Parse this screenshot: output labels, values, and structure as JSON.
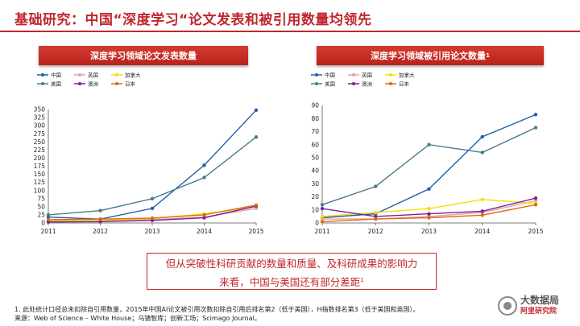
{
  "title": "基础研究：中国“深度学习“论文发表和被引用数量均领先",
  "callout": {
    "line1": "但从突破性科研贡献的数量和质量、及科研成果的影响力",
    "line2": "来看，中国与美国还有部分差距",
    "sup": "1"
  },
  "footnote": {
    "line1": "1. 此处统计口径总未扣除自引用数量，2015年中国AI论文被引用次数扣除自引用后排名第2（低于美国），H指数排名第3（低于美国和英国）。",
    "line2": "来源：Web of Science – White House；乌镇智库；创新工场；Scimago Journal。"
  },
  "watermark": {
    "main": "大数据局",
    "sub": "阿里研究院"
  },
  "colors": {
    "中国": "#1f5fa8",
    "英国": "#e8a0a0",
    "加拿大": "#f2e000",
    "美国": "#4a7b8c",
    "澳洲": "#7a1fa2",
    "日本": "#d86e10"
  },
  "chart_data": [
    {
      "type": "line",
      "title": "深度学习领域论文发表数量",
      "title_sup": "",
      "x": [
        2011,
        2012,
        2013,
        2014,
        2015
      ],
      "ylim": [
        0,
        350
      ],
      "yticks": [
        0,
        25,
        50,
        75,
        100,
        125,
        150,
        175,
        200,
        225,
        250,
        275,
        300,
        325,
        350
      ],
      "legend_placement": "top-left",
      "series": [
        {
          "name": "中国",
          "values": [
            18,
            12,
            45,
            178,
            348
          ]
        },
        {
          "name": "英国",
          "values": [
            5,
            6,
            10,
            18,
            45
          ]
        },
        {
          "name": "加拿大",
          "values": [
            8,
            8,
            14,
            28,
            50
          ]
        },
        {
          "name": "美国",
          "values": [
            25,
            38,
            75,
            140,
            265
          ]
        },
        {
          "name": "澳洲",
          "values": [
            3,
            4,
            8,
            16,
            52
          ]
        },
        {
          "name": "日本",
          "values": [
            10,
            12,
            15,
            25,
            55
          ]
        }
      ]
    },
    {
      "type": "line",
      "title": "深度学习领域被引用论文数量",
      "title_sup": "1",
      "x": [
        2011,
        2012,
        2013,
        2014,
        2015
      ],
      "ylim": [
        0,
        90
      ],
      "yticks": [
        0,
        10,
        20,
        30,
        40,
        50,
        60,
        70,
        80,
        90
      ],
      "legend_placement": "top-left",
      "series": [
        {
          "name": "中国",
          "values": [
            4,
            7,
            26,
            66,
            83
          ]
        },
        {
          "name": "英国",
          "values": [
            3,
            3,
            5,
            8,
            17
          ]
        },
        {
          "name": "加拿大",
          "values": [
            5,
            8,
            11,
            18,
            15
          ]
        },
        {
          "name": "美国",
          "values": [
            14,
            28,
            60,
            54,
            73
          ]
        },
        {
          "name": "澳洲",
          "values": [
            11,
            5,
            7,
            9,
            19
          ]
        },
        {
          "name": "日本",
          "values": [
            1,
            3,
            4,
            6,
            14
          ]
        }
      ]
    }
  ]
}
